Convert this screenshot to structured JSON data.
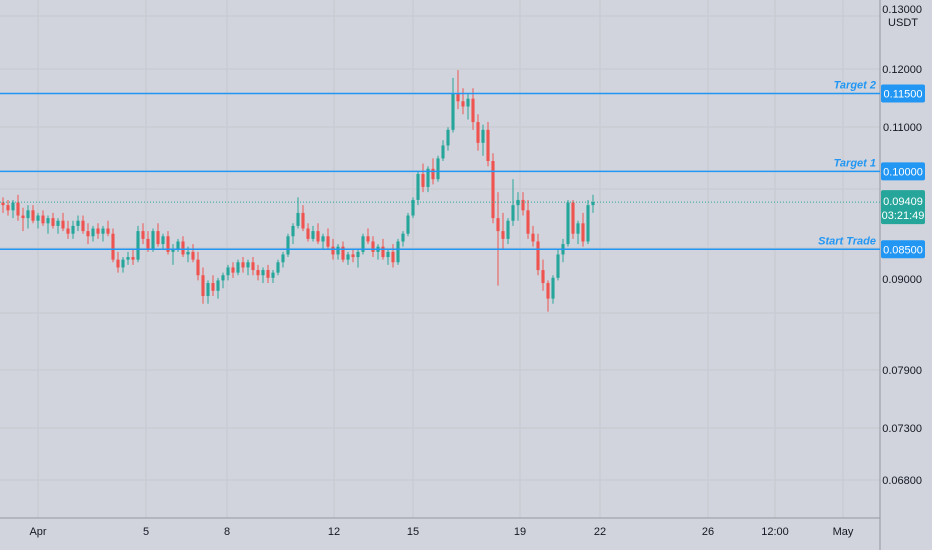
{
  "chart_data": {
    "type": "candlestick",
    "symbol_unit": "USDT",
    "price_axis_ticks": [
      "0.13000",
      "0.12000",
      "0.11000",
      "0.09000",
      "0.07900",
      "0.07300",
      "0.06800"
    ],
    "time_axis_ticks": [
      "Apr",
      "5",
      "8",
      "12",
      "15",
      "19",
      "22",
      "26",
      "12:00",
      "May"
    ],
    "current_price": {
      "value": "0.09409",
      "countdown": "03:21:49",
      "color": "#26a69a"
    },
    "levels": [
      {
        "name": "Target 2",
        "value": "0.11500",
        "price": 0.115,
        "color": "#2196f3"
      },
      {
        "name": "Target 1",
        "value": "0.10000",
        "price": 0.1,
        "color": "#2196f3"
      },
      {
        "name": "Start Trade",
        "value": "0.08500",
        "price": 0.085,
        "color": "#2196f3"
      }
    ],
    "up_color": "#26a69a",
    "down_color": "#ef5350",
    "grid": true,
    "candles": [
      [
        0.094,
        0.095,
        0.092,
        0.0935
      ],
      [
        0.0935,
        0.0945,
        0.0915,
        0.0925
      ],
      [
        0.0925,
        0.0945,
        0.091,
        0.094
      ],
      [
        0.094,
        0.0955,
        0.0905,
        0.0915
      ],
      [
        0.0915,
        0.093,
        0.0885,
        0.091
      ],
      [
        0.091,
        0.0935,
        0.089,
        0.0925
      ],
      [
        0.0925,
        0.0935,
        0.09,
        0.0905
      ],
      [
        0.0905,
        0.092,
        0.089,
        0.0915
      ],
      [
        0.0915,
        0.0925,
        0.0895,
        0.09
      ],
      [
        0.09,
        0.0915,
        0.088,
        0.091
      ],
      [
        0.091,
        0.092,
        0.089,
        0.0895
      ],
      [
        0.0895,
        0.091,
        0.088,
        0.0905
      ],
      [
        0.0905,
        0.092,
        0.0885,
        0.089
      ],
      [
        0.089,
        0.0905,
        0.087,
        0.088
      ],
      [
        0.088,
        0.0905,
        0.087,
        0.0895
      ],
      [
        0.0895,
        0.0915,
        0.0885,
        0.0905
      ],
      [
        0.0905,
        0.0915,
        0.088,
        0.0885
      ],
      [
        0.0885,
        0.09,
        0.086,
        0.0875
      ],
      [
        0.0875,
        0.0895,
        0.0865,
        0.089
      ],
      [
        0.089,
        0.09,
        0.087,
        0.088
      ],
      [
        0.088,
        0.0895,
        0.0865,
        0.089
      ],
      [
        0.089,
        0.0905,
        0.0875,
        0.088
      ],
      [
        0.088,
        0.089,
        0.0825,
        0.083
      ],
      [
        0.083,
        0.0845,
        0.0805,
        0.0815
      ],
      [
        0.0815,
        0.0835,
        0.0805,
        0.083
      ],
      [
        0.083,
        0.0845,
        0.082,
        0.0835
      ],
      [
        0.0835,
        0.085,
        0.082,
        0.083
      ],
      [
        0.083,
        0.0895,
        0.0825,
        0.0885
      ],
      [
        0.0885,
        0.09,
        0.086,
        0.087
      ],
      [
        0.087,
        0.0885,
        0.0845,
        0.085
      ],
      [
        0.085,
        0.089,
        0.0845,
        0.0885
      ],
      [
        0.0885,
        0.09,
        0.0855,
        0.086
      ],
      [
        0.086,
        0.088,
        0.085,
        0.0875
      ],
      [
        0.0875,
        0.0885,
        0.084,
        0.0845
      ],
      [
        0.0845,
        0.086,
        0.082,
        0.085
      ],
      [
        0.085,
        0.087,
        0.0845,
        0.0865
      ],
      [
        0.0865,
        0.0875,
        0.0835,
        0.084
      ],
      [
        0.084,
        0.0855,
        0.0825,
        0.0845
      ],
      [
        0.0845,
        0.086,
        0.0825,
        0.083
      ],
      [
        0.083,
        0.0845,
        0.079,
        0.08
      ],
      [
        0.08,
        0.0815,
        0.0745,
        0.076
      ],
      [
        0.076,
        0.079,
        0.0745,
        0.0785
      ],
      [
        0.0785,
        0.08,
        0.076,
        0.077
      ],
      [
        0.077,
        0.0795,
        0.0755,
        0.079
      ],
      [
        0.079,
        0.0805,
        0.0775,
        0.08
      ],
      [
        0.08,
        0.082,
        0.079,
        0.0815
      ],
      [
        0.0815,
        0.0825,
        0.0795,
        0.0805
      ],
      [
        0.0805,
        0.083,
        0.08,
        0.0825
      ],
      [
        0.0825,
        0.0835,
        0.0805,
        0.0815
      ],
      [
        0.0815,
        0.083,
        0.08,
        0.0825
      ],
      [
        0.0825,
        0.0835,
        0.08,
        0.081
      ],
      [
        0.081,
        0.082,
        0.079,
        0.08
      ],
      [
        0.08,
        0.0815,
        0.0785,
        0.081
      ],
      [
        0.081,
        0.082,
        0.0785,
        0.0795
      ],
      [
        0.0795,
        0.081,
        0.0785,
        0.0805
      ],
      [
        0.0805,
        0.083,
        0.08,
        0.0825
      ],
      [
        0.0825,
        0.0845,
        0.0815,
        0.084
      ],
      [
        0.084,
        0.088,
        0.0835,
        0.0875
      ],
      [
        0.0875,
        0.09,
        0.086,
        0.0895
      ],
      [
        0.0895,
        0.095,
        0.089,
        0.092
      ],
      [
        0.092,
        0.0935,
        0.0885,
        0.089
      ],
      [
        0.089,
        0.09,
        0.0865,
        0.087
      ],
      [
        0.087,
        0.0895,
        0.0865,
        0.0885
      ],
      [
        0.0885,
        0.09,
        0.086,
        0.0865
      ],
      [
        0.0865,
        0.088,
        0.085,
        0.0875
      ],
      [
        0.0875,
        0.089,
        0.085,
        0.0855
      ],
      [
        0.0855,
        0.087,
        0.083,
        0.084
      ],
      [
        0.084,
        0.086,
        0.083,
        0.0855
      ],
      [
        0.0855,
        0.0865,
        0.0825,
        0.083
      ],
      [
        0.083,
        0.0845,
        0.082,
        0.084
      ],
      [
        0.084,
        0.085,
        0.0825,
        0.0835
      ],
      [
        0.0835,
        0.085,
        0.0815,
        0.0845
      ],
      [
        0.0845,
        0.088,
        0.084,
        0.0875
      ],
      [
        0.0875,
        0.089,
        0.086,
        0.0865
      ],
      [
        0.0865,
        0.0875,
        0.0835,
        0.0845
      ],
      [
        0.0845,
        0.086,
        0.083,
        0.0855
      ],
      [
        0.0855,
        0.087,
        0.083,
        0.0835
      ],
      [
        0.0835,
        0.085,
        0.082,
        0.0845
      ],
      [
        0.0845,
        0.086,
        0.0815,
        0.0825
      ],
      [
        0.0825,
        0.087,
        0.082,
        0.0865
      ],
      [
        0.0865,
        0.0885,
        0.0855,
        0.088
      ],
      [
        0.088,
        0.092,
        0.0875,
        0.0915
      ],
      [
        0.0915,
        0.095,
        0.091,
        0.0945
      ],
      [
        0.0945,
        0.1,
        0.0935,
        0.0995
      ],
      [
        0.0995,
        0.1015,
        0.096,
        0.097
      ],
      [
        0.097,
        0.101,
        0.096,
        0.1005
      ],
      [
        0.1005,
        0.1025,
        0.0975,
        0.0985
      ],
      [
        0.0985,
        0.103,
        0.098,
        0.1025
      ],
      [
        0.1025,
        0.106,
        0.102,
        0.105
      ],
      [
        0.105,
        0.1085,
        0.104,
        0.108
      ],
      [
        0.108,
        0.118,
        0.1075,
        0.115
      ],
      [
        0.115,
        0.1195,
        0.112,
        0.1135
      ],
      [
        0.1135,
        0.116,
        0.111,
        0.1125
      ],
      [
        0.1125,
        0.115,
        0.11,
        0.114
      ],
      [
        0.114,
        0.116,
        0.108,
        0.1095
      ],
      [
        0.1095,
        0.111,
        0.104,
        0.1055
      ],
      [
        0.1055,
        0.109,
        0.103,
        0.108
      ],
      [
        0.108,
        0.1095,
        0.101,
        0.102
      ],
      [
        0.102,
        0.1035,
        0.09,
        0.091
      ],
      [
        0.091,
        0.096,
        0.078,
        0.0885
      ],
      [
        0.0885,
        0.092,
        0.085,
        0.087
      ],
      [
        0.087,
        0.091,
        0.086,
        0.0905
      ],
      [
        0.0905,
        0.0985,
        0.0895,
        0.0935
      ],
      [
        0.0935,
        0.096,
        0.0905,
        0.0945
      ],
      [
        0.0945,
        0.096,
        0.0915,
        0.0925
      ],
      [
        0.0925,
        0.0945,
        0.087,
        0.088
      ],
      [
        0.088,
        0.0895,
        0.0855,
        0.0865
      ],
      [
        0.0865,
        0.088,
        0.08,
        0.081
      ],
      [
        0.081,
        0.083,
        0.077,
        0.0785
      ],
      [
        0.0785,
        0.079,
        0.073,
        0.0755
      ],
      [
        0.0755,
        0.08,
        0.0745,
        0.0795
      ],
      [
        0.0795,
        0.085,
        0.079,
        0.084
      ],
      [
        0.084,
        0.087,
        0.0825,
        0.086
      ],
      [
        0.086,
        0.0945,
        0.0855,
        0.094
      ],
      [
        0.094,
        0.0945,
        0.087,
        0.088
      ],
      [
        0.088,
        0.0905,
        0.086,
        0.09
      ],
      [
        0.09,
        0.092,
        0.0855,
        0.0865
      ],
      [
        0.0865,
        0.0945,
        0.086,
        0.0935
      ],
      [
        0.0935,
        0.0955,
        0.092,
        0.0941
      ]
    ]
  }
}
